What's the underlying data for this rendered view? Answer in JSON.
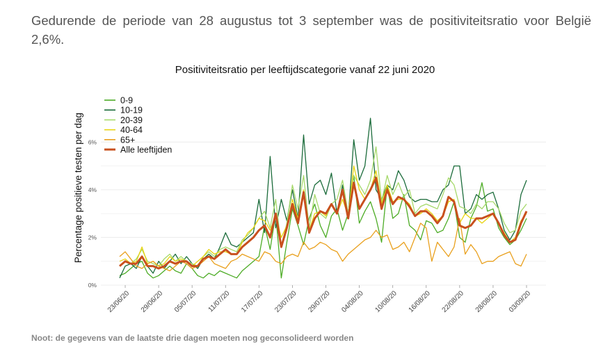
{
  "intro_text": "Gedurende de periode van 28 augustus tot 3 september was de positiviteitsratio voor België 2,6%.",
  "note": "Noot: de gegevens van de laatste drie dagen moeten nog geconsolideerd worden",
  "chart_data": {
    "type": "line",
    "title": "Positiviteitsratio per leeftijdscategorie vanaf 22 juni 2020",
    "xlabel": "",
    "ylabel": "Percentage positieve testen per dag",
    "x": [
      "22/06/20",
      "23/06/20",
      "24/06/20",
      "25/06/20",
      "26/06/20",
      "27/06/20",
      "28/06/20",
      "29/06/20",
      "30/06/20",
      "01/07/20",
      "02/07/20",
      "03/07/20",
      "04/07/20",
      "05/07/20",
      "06/07/20",
      "07/07/20",
      "08/07/20",
      "09/07/20",
      "10/07/20",
      "11/07/20",
      "12/07/20",
      "13/07/20",
      "14/07/20",
      "15/07/20",
      "16/07/20",
      "17/07/20",
      "18/07/20",
      "19/07/20",
      "20/07/20",
      "21/07/20",
      "22/07/20",
      "23/07/20",
      "24/07/20",
      "25/07/20",
      "26/07/20",
      "27/07/20",
      "28/07/20",
      "29/07/20",
      "30/07/20",
      "31/07/20",
      "01/08/20",
      "02/08/20",
      "03/08/20",
      "04/08/20",
      "05/08/20",
      "06/08/20",
      "07/08/20",
      "08/08/20",
      "09/08/20",
      "10/08/20",
      "11/08/20",
      "12/08/20",
      "13/08/20",
      "14/08/20",
      "15/08/20",
      "16/08/20",
      "17/08/20",
      "18/08/20",
      "19/08/20",
      "20/08/20",
      "21/08/20",
      "22/08/20",
      "23/08/20",
      "24/08/20",
      "25/08/20",
      "26/08/20",
      "27/08/20",
      "28/08/20",
      "29/08/20",
      "30/08/20",
      "31/08/20",
      "01/09/20",
      "02/09/20",
      "03/09/20"
    ],
    "x_tick_labels": [
      "23/06/20",
      "29/06/20",
      "05/07/20",
      "11/07/20",
      "17/07/20",
      "23/07/20",
      "29/07/20",
      "04/08/20",
      "10/08/20",
      "16/08/20",
      "22/08/20",
      "28/08/20",
      "03/09/20"
    ],
    "y_tick_labels": [
      "0%",
      "2%",
      "4%",
      "6%"
    ],
    "ylim": [
      0,
      7
    ],
    "grid": true,
    "legend_position": "top-left",
    "series": [
      {
        "name": "0-9",
        "color": "#4dac26",
        "values": [
          0.4,
          0.5,
          0.7,
          0.9,
          1.0,
          0.5,
          0.3,
          0.4,
          0.6,
          0.8,
          0.6,
          0.5,
          0.9,
          0.7,
          0.4,
          0.3,
          0.5,
          0.4,
          0.6,
          0.5,
          0.4,
          0.3,
          0.6,
          0.8,
          1.0,
          1.2,
          2.5,
          1.5,
          3.0,
          0.3,
          1.8,
          3.2,
          2.5,
          1.7,
          2.8,
          3.4,
          2.5,
          2.0,
          2.9,
          3.2,
          2.3,
          3.0,
          4.6,
          2.6,
          3.1,
          3.5,
          2.8,
          1.8,
          4.2,
          2.8,
          3.0,
          3.8,
          2.5,
          2.3,
          1.9,
          2.7,
          2.6,
          2.2,
          2.3,
          2.8,
          3.5,
          2.0,
          1.8,
          2.8,
          3.3,
          4.3,
          3.1,
          3.2,
          2.4,
          2.0,
          1.7,
          1.9,
          2.3,
          2.8
        ]
      },
      {
        "name": "10-19",
        "color": "#1a6b3a",
        "values": [
          0.3,
          0.8,
          0.9,
          0.7,
          1.2,
          0.8,
          0.5,
          1.0,
          0.7,
          1.0,
          1.3,
          0.9,
          1.2,
          0.9,
          0.7,
          1.1,
          1.3,
          1.1,
          1.6,
          2.2,
          1.7,
          1.6,
          1.8,
          2.0,
          2.2,
          3.6,
          2.2,
          5.4,
          2.4,
          3.6,
          2.7,
          4.0,
          2.8,
          6.3,
          3.4,
          4.2,
          4.4,
          3.8,
          4.7,
          3.0,
          4.2,
          2.8,
          6.1,
          4.4,
          5.0,
          7.0,
          4.0,
          3.6,
          4.2,
          4.0,
          4.8,
          4.4,
          3.7,
          3.5,
          3.6,
          3.6,
          3.5,
          3.5,
          4.0,
          4.2,
          5.0,
          5.0,
          3.0,
          3.2,
          3.8,
          3.6,
          3.8,
          3.9,
          3.2,
          2.3,
          1.9,
          2.3,
          3.8,
          4.4
        ]
      },
      {
        "name": "20-39",
        "color": "#a6d96a",
        "values": [
          0.8,
          1.0,
          0.9,
          1.1,
          1.5,
          1.0,
          0.9,
          0.8,
          1.1,
          1.3,
          1.0,
          1.2,
          1.0,
          0.9,
          0.8,
          1.2,
          1.4,
          1.2,
          1.5,
          1.6,
          1.5,
          1.4,
          1.9,
          2.1,
          2.4,
          2.8,
          3.1,
          2.4,
          3.6,
          1.6,
          2.6,
          4.2,
          3.2,
          4.6,
          2.4,
          3.8,
          3.0,
          2.8,
          3.4,
          3.6,
          4.4,
          3.0,
          4.6,
          4.2,
          3.8,
          4.4,
          5.8,
          3.5,
          4.6,
          3.8,
          4.3,
          3.7,
          4.0,
          3.0,
          3.3,
          3.4,
          3.3,
          3.2,
          3.8,
          4.5,
          4.2,
          3.3,
          3.2,
          3.0,
          3.4,
          3.2,
          3.5,
          3.5,
          3.2,
          2.6,
          2.2,
          2.3,
          3.1,
          3.4
        ]
      },
      {
        "name": "40-64",
        "color": "#e8d410",
        "values": [
          1.0,
          1.1,
          0.9,
          1.0,
          1.6,
          0.9,
          1.0,
          0.8,
          0.9,
          1.2,
          1.0,
          1.1,
          1.0,
          0.8,
          1.0,
          1.2,
          1.5,
          1.3,
          1.4,
          1.4,
          1.3,
          1.3,
          1.8,
          2.2,
          2.4,
          2.8,
          2.7,
          2.3,
          2.9,
          2.0,
          2.5,
          3.6,
          2.8,
          4.0,
          2.3,
          3.0,
          3.1,
          2.9,
          3.4,
          3.0,
          3.6,
          2.9,
          5.0,
          4.0,
          3.6,
          4.0,
          4.8,
          3.4,
          4.2,
          3.5,
          3.6,
          3.6,
          3.4,
          2.9,
          3.0,
          3.2,
          3.0,
          2.7,
          2.9,
          3.5,
          3.6,
          2.6,
          3.0,
          2.8,
          2.8,
          2.6,
          2.8,
          3.0,
          2.6,
          2.2,
          1.8,
          2.0,
          2.7,
          3.0
        ]
      },
      {
        "name": "65+",
        "color": "#e9a01d",
        "values": [
          1.2,
          1.4,
          1.1,
          0.8,
          0.7,
          0.9,
          1.0,
          0.8,
          0.7,
          0.6,
          0.8,
          1.0,
          0.9,
          0.7,
          0.8,
          1.0,
          1.2,
          0.9,
          0.8,
          0.7,
          1.0,
          1.1,
          1.3,
          1.2,
          1.1,
          1.0,
          1.4,
          1.3,
          1.0,
          0.9,
          1.2,
          1.3,
          1.2,
          1.8,
          1.5,
          1.6,
          1.8,
          1.7,
          1.5,
          1.4,
          1.0,
          1.3,
          1.5,
          1.7,
          1.9,
          2.0,
          2.3,
          2.0,
          2.1,
          1.5,
          1.6,
          1.8,
          1.4,
          2.0,
          2.6,
          2.4,
          1.0,
          1.8,
          1.5,
          1.2,
          1.6,
          2.8,
          1.3,
          1.7,
          1.4,
          0.9,
          1.0,
          1.0,
          1.2,
          1.3,
          1.4,
          0.9,
          0.8,
          1.3
        ]
      },
      {
        "name": "Alle leeftijden",
        "color": "#c8501e",
        "width": 3,
        "values": [
          0.8,
          1.0,
          0.9,
          0.9,
          1.2,
          0.8,
          0.8,
          0.7,
          0.8,
          1.0,
          0.9,
          1.0,
          1.0,
          0.8,
          0.8,
          1.1,
          1.2,
          1.1,
          1.3,
          1.5,
          1.3,
          1.3,
          1.6,
          1.8,
          2.0,
          2.3,
          2.5,
          2.0,
          3.0,
          1.6,
          2.4,
          3.4,
          2.6,
          3.9,
          2.2,
          2.8,
          3.1,
          3.0,
          3.4,
          3.0,
          4.0,
          2.8,
          4.3,
          3.2,
          3.6,
          4.0,
          4.5,
          3.2,
          4.0,
          3.4,
          3.7,
          3.6,
          3.3,
          2.9,
          3.1,
          3.1,
          2.9,
          2.6,
          2.9,
          3.7,
          3.5,
          2.5,
          2.4,
          2.5,
          2.8,
          2.8,
          2.9,
          3.0,
          2.6,
          2.1,
          1.8,
          1.9,
          2.6,
          3.1
        ]
      }
    ]
  }
}
